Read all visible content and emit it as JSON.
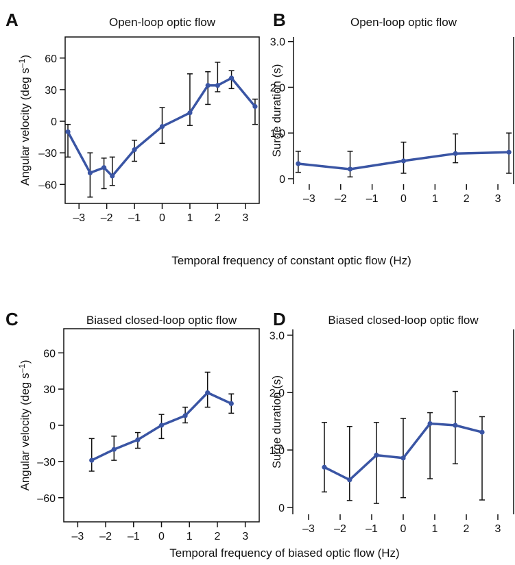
{
  "figure": {
    "xlabel_top": "Temporal frequency of constant optic flow (Hz)",
    "xlabel_bottom": "Temporal frequency of biased optic flow (Hz)"
  },
  "chart_data": [
    {
      "panel": "A",
      "type": "line",
      "title": "Open-loop optic flow",
      "xlabel": "Temporal frequency of constant optic flow (Hz)",
      "ylabel": "Angular velocity (deg s",
      "ylabel_sup": "–1",
      "ylabel_close": ")",
      "xlim": [
        -3.5,
        3.5
      ],
      "ylim": [
        -78,
        80
      ],
      "xticks": [
        -3,
        -2,
        -1,
        0,
        1,
        2,
        3
      ],
      "xtick_labels": [
        "–3",
        "–2",
        "–1",
        "0",
        "1",
        "2",
        "3"
      ],
      "yticks": [
        -60,
        -30,
        0,
        30,
        60
      ],
      "ytick_labels": [
        "–60",
        "–30",
        "0",
        "30",
        "60"
      ],
      "color": "#3a55a4",
      "series": [
        {
          "x": [
            -3.4,
            -2.6,
            -2.1,
            -1.8,
            -1.0,
            0.0,
            1.0,
            1.65,
            2.0,
            2.5,
            3.35
          ],
          "y": [
            -10,
            -49,
            -44,
            -52,
            -27,
            -5,
            8,
            34,
            34,
            41,
            14
          ],
          "yerr_low": [
            -34,
            -72,
            -64,
            -61,
            -38,
            -21,
            -4,
            16,
            28,
            31,
            -3
          ],
          "yerr_high": [
            -3,
            -30,
            -35,
            -34,
            -18,
            13,
            45,
            47,
            56,
            48,
            21
          ]
        }
      ]
    },
    {
      "panel": "B",
      "type": "line",
      "title": "Open-loop optic flow",
      "xlabel": "Temporal frequency of constant optic flow (Hz)",
      "ylabel": "Surge duration (s)",
      "xlim": [
        -3.5,
        3.5
      ],
      "ylim": [
        -0.12,
        3.1
      ],
      "xticks": [
        -3,
        -2,
        -1,
        0,
        1,
        2,
        3
      ],
      "xtick_labels": [
        "–3",
        "–2",
        "–1",
        "0",
        "1",
        "2",
        "3"
      ],
      "yticks": [
        0,
        1,
        2,
        3
      ],
      "ytick_labels": [
        "0",
        "1.0",
        "2.0",
        "3.0"
      ],
      "color": "#3a55a4",
      "series": [
        {
          "x": [
            -3.35,
            -1.7,
            0.0,
            1.65,
            3.35
          ],
          "y": [
            0.33,
            0.21,
            0.39,
            0.55,
            0.58
          ],
          "yerr_low": [
            0.14,
            0.04,
            0.12,
            0.35,
            0.12
          ],
          "yerr_high": [
            0.6,
            0.6,
            0.8,
            0.98,
            1.0
          ]
        }
      ]
    },
    {
      "panel": "C",
      "type": "line",
      "title": "Biased closed-loop optic flow",
      "xlabel": "Temporal frequency of biased optic flow (Hz)",
      "ylabel": "Angular velocity (deg s",
      "ylabel_sup": "–1",
      "ylabel_close": ")",
      "xlim": [
        -3.5,
        3.5
      ],
      "ylim": [
        -80,
        80
      ],
      "xticks": [
        -3,
        -2,
        -1,
        0,
        1,
        2,
        3
      ],
      "xtick_labels": [
        "–3",
        "–2",
        "–1",
        "0",
        "1",
        "2",
        "3"
      ],
      "yticks": [
        -60,
        -30,
        0,
        30,
        60
      ],
      "ytick_labels": [
        "–60",
        "–30",
        "0",
        "30",
        "60"
      ],
      "color": "#3a55a4",
      "series": [
        {
          "x": [
            -2.5,
            -1.7,
            -0.85,
            0.0,
            0.85,
            1.65,
            2.5
          ],
          "y": [
            -29,
            -20,
            -12,
            0,
            8,
            27,
            18
          ],
          "yerr_low": [
            -38,
            -29,
            -19,
            -11,
            2,
            15,
            10
          ],
          "yerr_high": [
            -11,
            -9,
            -6,
            9,
            15,
            44,
            26
          ]
        }
      ]
    },
    {
      "panel": "D",
      "type": "line",
      "title": "Biased closed-loop optic flow",
      "xlabel": "Temporal frequency of biased optic flow (Hz)",
      "ylabel": "Surge duration (s)",
      "xlim": [
        -3.5,
        3.5
      ],
      "ylim": [
        -0.12,
        3.1
      ],
      "xticks": [
        -3,
        -2,
        -1,
        0,
        1,
        2,
        3
      ],
      "xtick_labels": [
        "–3",
        "–2",
        "–1",
        "0",
        "1",
        "2",
        "3"
      ],
      "yticks": [
        0,
        1,
        2,
        3
      ],
      "ytick_labels": [
        "0",
        "1.0",
        "2.0",
        "3.0"
      ],
      "color": "#3a55a4",
      "series": [
        {
          "x": [
            -2.5,
            -1.7,
            -0.85,
            0.0,
            0.85,
            1.65,
            2.5
          ],
          "y": [
            0.7,
            0.48,
            0.91,
            0.86,
            1.46,
            1.43,
            1.31
          ],
          "yerr_low": [
            0.27,
            0.12,
            0.07,
            0.17,
            0.5,
            0.76,
            0.13
          ],
          "yerr_high": [
            1.48,
            1.41,
            1.48,
            1.55,
            1.65,
            2.02,
            1.58
          ]
        }
      ]
    }
  ]
}
